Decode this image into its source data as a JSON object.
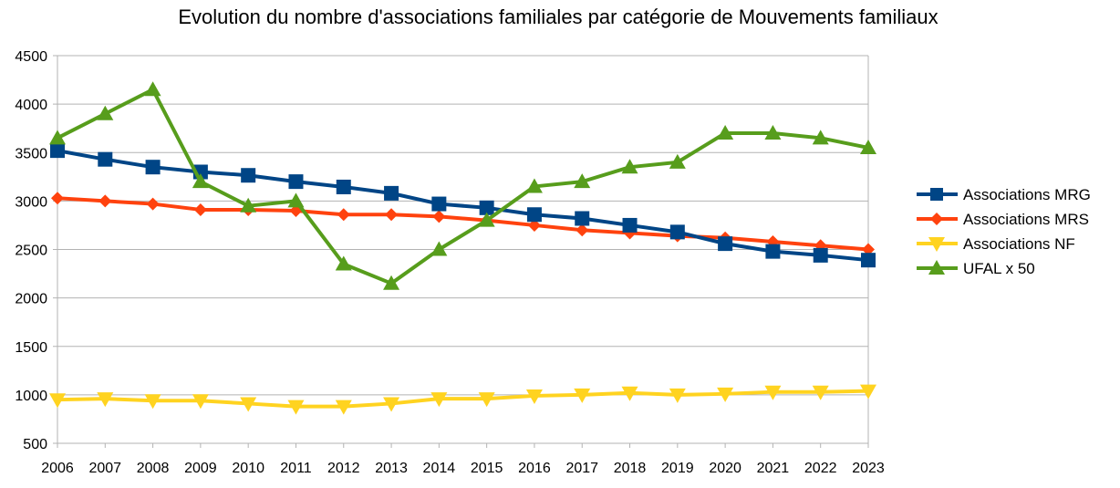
{
  "chart_data": {
    "type": "line",
    "title": "Evolution du nombre d'associations familiales par catégorie de Mouvements familiaux",
    "xlabel": "",
    "ylabel": "",
    "ylim": [
      500,
      4500
    ],
    "yticks": [
      500,
      1000,
      1500,
      2000,
      2500,
      3000,
      3500,
      4000,
      4500
    ],
    "grid": true,
    "legend_position": "right",
    "x": [
      "2006",
      "2007",
      "2008",
      "2009",
      "2010",
      "2011",
      "2012",
      "2013",
      "2014",
      "2015",
      "2016",
      "2017",
      "2018",
      "2019",
      "2020",
      "2021",
      "2022",
      "2023"
    ],
    "series": [
      {
        "name": "Associations MRG",
        "color": "#004586",
        "marker": "square",
        "values": [
          3520,
          3430,
          3350,
          3300,
          3265,
          3200,
          3145,
          3080,
          2970,
          2930,
          2860,
          2820,
          2750,
          2680,
          2560,
          2480,
          2440,
          2390
        ]
      },
      {
        "name": "Associations MRS",
        "color": "#ff420e",
        "marker": "diamond",
        "values": [
          3030,
          3000,
          2970,
          2910,
          2910,
          2900,
          2860,
          2860,
          2840,
          2800,
          2750,
          2700,
          2670,
          2640,
          2620,
          2580,
          2540,
          2500
        ]
      },
      {
        "name": "Associations NF",
        "color": "#ffd320",
        "marker": "triangle-down",
        "values": [
          950,
          960,
          940,
          940,
          910,
          880,
          880,
          910,
          960,
          960,
          990,
          1000,
          1020,
          1000,
          1010,
          1030,
          1030,
          1040
        ]
      },
      {
        "name": "UFAL x 50",
        "color": "#579d1c",
        "marker": "triangle-up",
        "values": [
          3650,
          3900,
          4150,
          3200,
          2950,
          3000,
          2350,
          2150,
          2500,
          2800,
          3150,
          3200,
          3350,
          3400,
          3700,
          3700,
          3650,
          3550
        ]
      }
    ]
  }
}
